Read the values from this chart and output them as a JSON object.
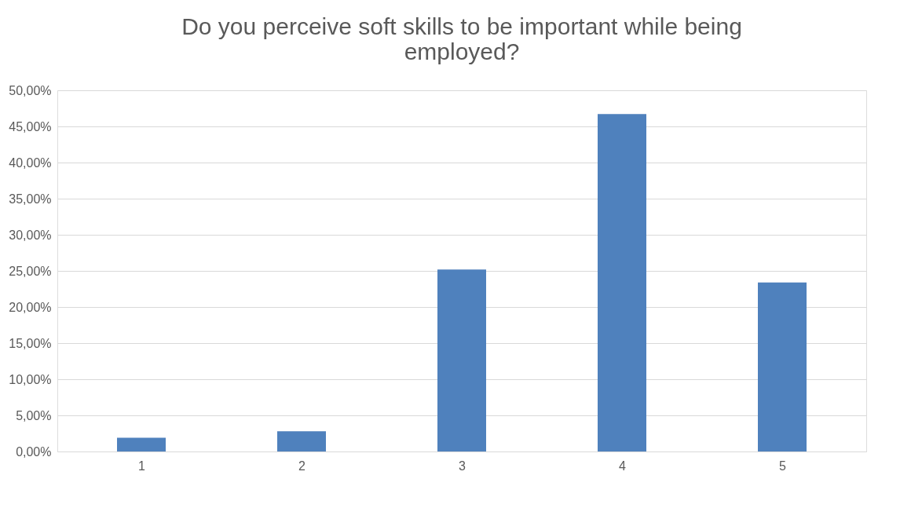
{
  "chart_data": {
    "type": "bar",
    "title": "Do you perceive soft skills to be important while being employed?",
    "categories": [
      "1",
      "2",
      "3",
      "4",
      "5"
    ],
    "values": [
      1.9,
      2.8,
      25.2,
      46.7,
      23.4
    ],
    "color": "#4f81bd",
    "ylim": [
      0,
      50
    ],
    "yticks": [
      {
        "value": 0,
        "label": "0,00%"
      },
      {
        "value": 5,
        "label": "5,00%"
      },
      {
        "value": 10,
        "label": "10,00%"
      },
      {
        "value": 15,
        "label": "15,00%"
      },
      {
        "value": 20,
        "label": "20,00%"
      },
      {
        "value": 25,
        "label": "25,00%"
      },
      {
        "value": 30,
        "label": "30,00%"
      },
      {
        "value": 35,
        "label": "35,00%"
      },
      {
        "value": 40,
        "label": "40,00%"
      },
      {
        "value": 45,
        "label": "45,00%"
      },
      {
        "value": 50,
        "label": "50,00%"
      }
    ],
    "grid": "y"
  }
}
